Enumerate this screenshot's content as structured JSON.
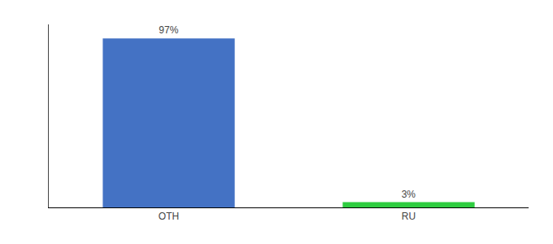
{
  "chart_data": {
    "type": "bar",
    "categories": [
      "OTH",
      "RU"
    ],
    "values": [
      97,
      3
    ],
    "value_labels": [
      "97%",
      "3%"
    ],
    "colors": [
      "#4472C4",
      "#2ECC40"
    ],
    "ylim": [
      0,
      105
    ],
    "data_labels": true,
    "tick_labels": "x",
    "grid": false
  }
}
